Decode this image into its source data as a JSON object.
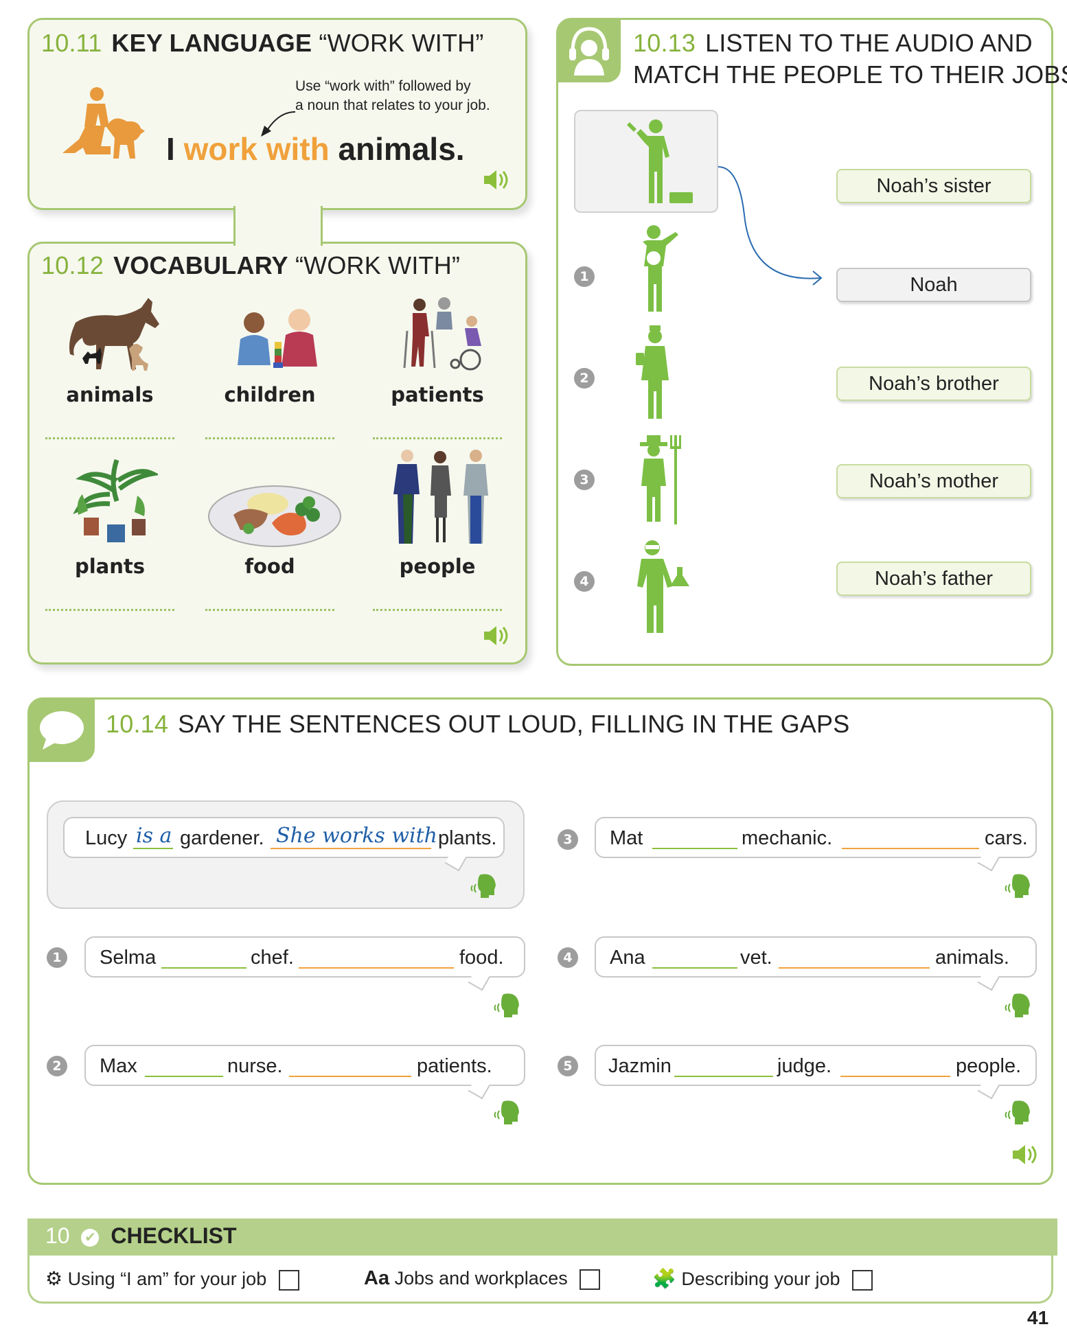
{
  "s1011": {
    "num": "10.11",
    "title_bold": "KEY LANGUAGE",
    "title_quote": "“WORK WITH”",
    "note_l1": "Use “work with” followed by",
    "note_l2": "a noun that relates to your job.",
    "sent_i": "I",
    "sent_ww": "work with",
    "sent_noun": "animals."
  },
  "s1012": {
    "num": "10.12",
    "title_bold": "VOCABULARY",
    "title_quote": "“WORK WITH”",
    "items": [
      "animals",
      "children",
      "patients",
      "plants",
      "food",
      "people"
    ]
  },
  "s1013": {
    "num": "10.13",
    "title_l1": "LISTEN TO THE AUDIO AND",
    "title_l2": "MATCH THE PEOPLE TO THEIR JOBS",
    "numbers": [
      "1",
      "2",
      "3",
      "4"
    ],
    "names": [
      "Noah’s sister",
      "Noah",
      "Noah’s brother",
      "Noah’s mother",
      "Noah’s father"
    ]
  },
  "s1014": {
    "num": "10.14",
    "title": "SAY THE SENTENCES OUT LOUD, FILLING IN THE GAPS",
    "example": {
      "w1": "Lucy",
      "a1": "is a",
      "w2": "gardener.",
      "a2": "She works with",
      "w3": "plants."
    },
    "items": [
      {
        "n": "1",
        "name": "Selma",
        "job": "chef.",
        "noun": "food."
      },
      {
        "n": "2",
        "name": "Max",
        "job": "nurse.",
        "noun": "patients."
      },
      {
        "n": "3",
        "name": "Mat",
        "job": "mechanic.",
        "noun": "cars."
      },
      {
        "n": "4",
        "name": "Ana",
        "job": "vet.",
        "noun": "animals."
      },
      {
        "n": "5",
        "name": "Jazmin",
        "job": "judge.",
        "noun": "people."
      }
    ]
  },
  "checklist": {
    "num": "10",
    "title": "CHECKLIST",
    "item1": "Using “I am” for your job",
    "aa": "Aa",
    "item2": "Jobs and workplaces",
    "item3": "Describing your job"
  },
  "page_number": "41",
  "colors": {
    "accent_green": "#a6c872",
    "heading_green": "#86b23c",
    "orange": "#f0a13b",
    "answer_blue": "#1f5fa8"
  }
}
